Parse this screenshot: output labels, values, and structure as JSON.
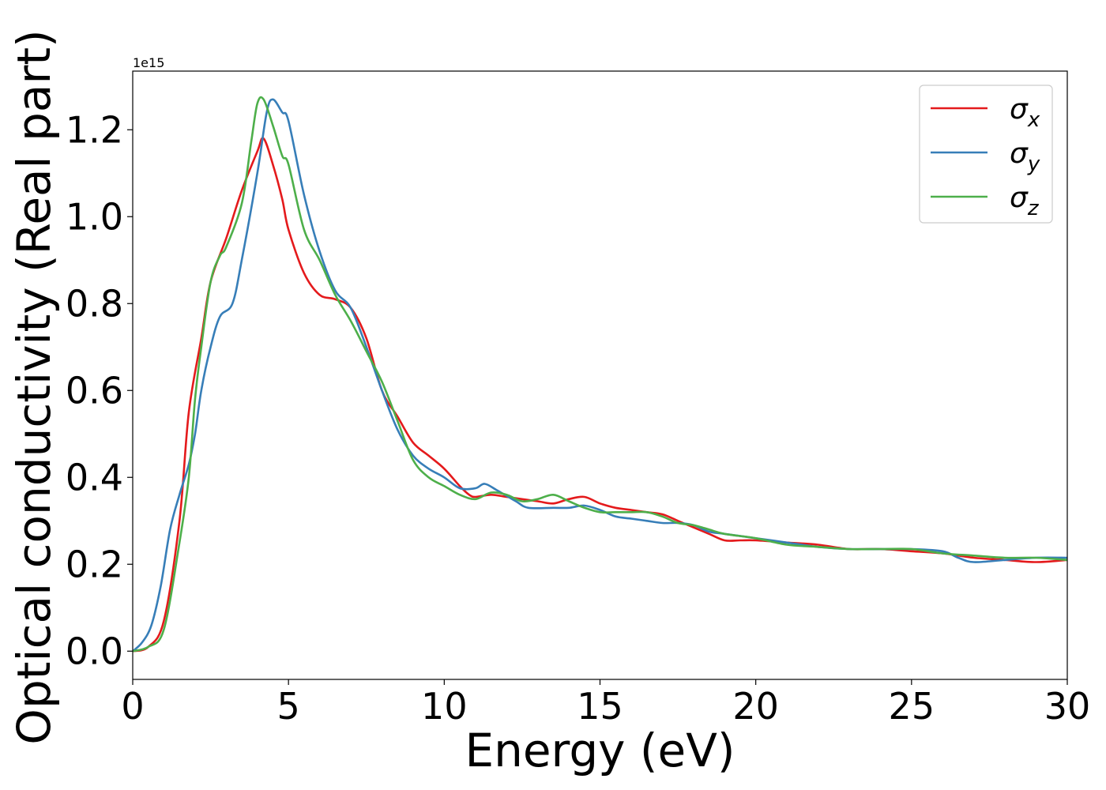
{
  "chart_data": {
    "type": "line",
    "title": "",
    "xlabel": "Energy (eV)",
    "ylabel": "Optical conductivity (Real part)",
    "y_offset_text": "1e15",
    "xlim": [
      0,
      30
    ],
    "ylim": [
      -0.065,
      1.335
    ],
    "xticks": [
      0,
      5,
      10,
      15,
      20,
      25,
      30
    ],
    "yticks": [
      0.0,
      0.2,
      0.4,
      0.6,
      0.8,
      1.0,
      1.2
    ],
    "xtick_labels": [
      "0",
      "5",
      "10",
      "15",
      "20",
      "25",
      "30"
    ],
    "ytick_labels": [
      "0.0",
      "0.2",
      "0.4",
      "0.6",
      "0.8",
      "1.0",
      "1.2"
    ],
    "grid": false,
    "legend_position": "top-right",
    "series": [
      {
        "name": "σx",
        "label_base": "σ",
        "label_sub": "x",
        "color": "#e41a1c",
        "points": [
          [
            0,
            0
          ],
          [
            0.5,
            0.01
          ],
          [
            1,
            0.07
          ],
          [
            1.5,
            0.3
          ],
          [
            1.8,
            0.55
          ],
          [
            2.2,
            0.72
          ],
          [
            2.5,
            0.85
          ],
          [
            3,
            0.95
          ],
          [
            3.5,
            1.06
          ],
          [
            4,
            1.15
          ],
          [
            4.2,
            1.18
          ],
          [
            4.5,
            1.12
          ],
          [
            4.8,
            1.04
          ],
          [
            5,
            0.97
          ],
          [
            5.5,
            0.87
          ],
          [
            6,
            0.82
          ],
          [
            6.5,
            0.81
          ],
          [
            7,
            0.79
          ],
          [
            7.5,
            0.72
          ],
          [
            8,
            0.6
          ],
          [
            8.5,
            0.54
          ],
          [
            9,
            0.48
          ],
          [
            9.5,
            0.45
          ],
          [
            10,
            0.42
          ],
          [
            10.5,
            0.38
          ],
          [
            10.8,
            0.36
          ],
          [
            11,
            0.355
          ],
          [
            11.5,
            0.36
          ],
          [
            12,
            0.355
          ],
          [
            12.5,
            0.35
          ],
          [
            13,
            0.345
          ],
          [
            13.5,
            0.34
          ],
          [
            14,
            0.35
          ],
          [
            14.5,
            0.355
          ],
          [
            15,
            0.34
          ],
          [
            15.5,
            0.33
          ],
          [
            16,
            0.325
          ],
          [
            16.5,
            0.32
          ],
          [
            17,
            0.315
          ],
          [
            17.5,
            0.3
          ],
          [
            18,
            0.285
          ],
          [
            18.5,
            0.27
          ],
          [
            19,
            0.255
          ],
          [
            19.5,
            0.255
          ],
          [
            20,
            0.255
          ],
          [
            21,
            0.25
          ],
          [
            22,
            0.245
          ],
          [
            23,
            0.235
          ],
          [
            24,
            0.235
          ],
          [
            25,
            0.23
          ],
          [
            26,
            0.225
          ],
          [
            27,
            0.215
          ],
          [
            28,
            0.21
          ],
          [
            29,
            0.205
          ],
          [
            30,
            0.21
          ]
        ]
      },
      {
        "name": "σy",
        "label_base": "σ",
        "label_sub": "y",
        "color": "#377eb8",
        "points": [
          [
            0,
            0
          ],
          [
            0.3,
            0.02
          ],
          [
            0.6,
            0.06
          ],
          [
            0.9,
            0.15
          ],
          [
            1.2,
            0.28
          ],
          [
            1.5,
            0.36
          ],
          [
            1.8,
            0.43
          ],
          [
            2,
            0.5
          ],
          [
            2.2,
            0.6
          ],
          [
            2.5,
            0.7
          ],
          [
            2.8,
            0.77
          ],
          [
            3.2,
            0.8
          ],
          [
            3.5,
            0.9
          ],
          [
            4,
            1.1
          ],
          [
            4.3,
            1.24
          ],
          [
            4.5,
            1.27
          ],
          [
            4.8,
            1.24
          ],
          [
            5,
            1.22
          ],
          [
            5.5,
            1.05
          ],
          [
            6,
            0.92
          ],
          [
            6.5,
            0.83
          ],
          [
            7,
            0.79
          ],
          [
            7.5,
            0.7
          ],
          [
            8,
            0.6
          ],
          [
            8.5,
            0.51
          ],
          [
            9,
            0.45
          ],
          [
            9.5,
            0.42
          ],
          [
            10,
            0.4
          ],
          [
            10.5,
            0.375
          ],
          [
            11,
            0.375
          ],
          [
            11.3,
            0.385
          ],
          [
            11.7,
            0.37
          ],
          [
            12.3,
            0.345
          ],
          [
            12.7,
            0.33
          ],
          [
            13.5,
            0.33
          ],
          [
            14,
            0.33
          ],
          [
            14.5,
            0.335
          ],
          [
            15,
            0.325
          ],
          [
            15.5,
            0.31
          ],
          [
            16,
            0.305
          ],
          [
            16.5,
            0.3
          ],
          [
            17,
            0.295
          ],
          [
            17.5,
            0.295
          ],
          [
            18,
            0.29
          ],
          [
            18.5,
            0.275
          ],
          [
            19,
            0.27
          ],
          [
            20,
            0.26
          ],
          [
            21,
            0.25
          ],
          [
            22,
            0.24
          ],
          [
            23,
            0.235
          ],
          [
            24,
            0.235
          ],
          [
            25,
            0.235
          ],
          [
            26,
            0.23
          ],
          [
            26.5,
            0.215
          ],
          [
            27,
            0.205
          ],
          [
            28,
            0.21
          ],
          [
            29,
            0.215
          ],
          [
            30,
            0.215
          ]
        ]
      },
      {
        "name": "σz",
        "label_base": "σ",
        "label_sub": "z",
        "color": "#4daf4a",
        "points": [
          [
            0,
            0
          ],
          [
            0.5,
            0.01
          ],
          [
            1,
            0.05
          ],
          [
            1.5,
            0.25
          ],
          [
            1.8,
            0.4
          ],
          [
            2,
            0.58
          ],
          [
            2.2,
            0.7
          ],
          [
            2.5,
            0.85
          ],
          [
            2.8,
            0.91
          ],
          [
            3,
            0.93
          ],
          [
            3.5,
            1.03
          ],
          [
            3.8,
            1.17
          ],
          [
            4,
            1.26
          ],
          [
            4.2,
            1.27
          ],
          [
            4.5,
            1.21
          ],
          [
            4.8,
            1.14
          ],
          [
            5,
            1.12
          ],
          [
            5.5,
            0.97
          ],
          [
            6,
            0.9
          ],
          [
            6.5,
            0.82
          ],
          [
            7,
            0.76
          ],
          [
            7.5,
            0.69
          ],
          [
            8,
            0.62
          ],
          [
            8.5,
            0.53
          ],
          [
            9,
            0.44
          ],
          [
            9.5,
            0.4
          ],
          [
            10,
            0.38
          ],
          [
            10.5,
            0.36
          ],
          [
            11,
            0.35
          ],
          [
            11.5,
            0.365
          ],
          [
            12,
            0.36
          ],
          [
            12.5,
            0.345
          ],
          [
            13,
            0.35
          ],
          [
            13.5,
            0.36
          ],
          [
            14,
            0.345
          ],
          [
            14.5,
            0.33
          ],
          [
            15,
            0.32
          ],
          [
            15.5,
            0.32
          ],
          [
            16,
            0.32
          ],
          [
            16.5,
            0.32
          ],
          [
            17,
            0.31
          ],
          [
            17.5,
            0.295
          ],
          [
            18,
            0.29
          ],
          [
            18.5,
            0.28
          ],
          [
            19,
            0.27
          ],
          [
            20,
            0.26
          ],
          [
            21,
            0.245
          ],
          [
            22,
            0.24
          ],
          [
            23,
            0.235
          ],
          [
            24,
            0.235
          ],
          [
            25,
            0.235
          ],
          [
            26,
            0.225
          ],
          [
            27,
            0.22
          ],
          [
            28,
            0.215
          ],
          [
            29,
            0.215
          ],
          [
            30,
            0.21
          ]
        ]
      }
    ]
  }
}
